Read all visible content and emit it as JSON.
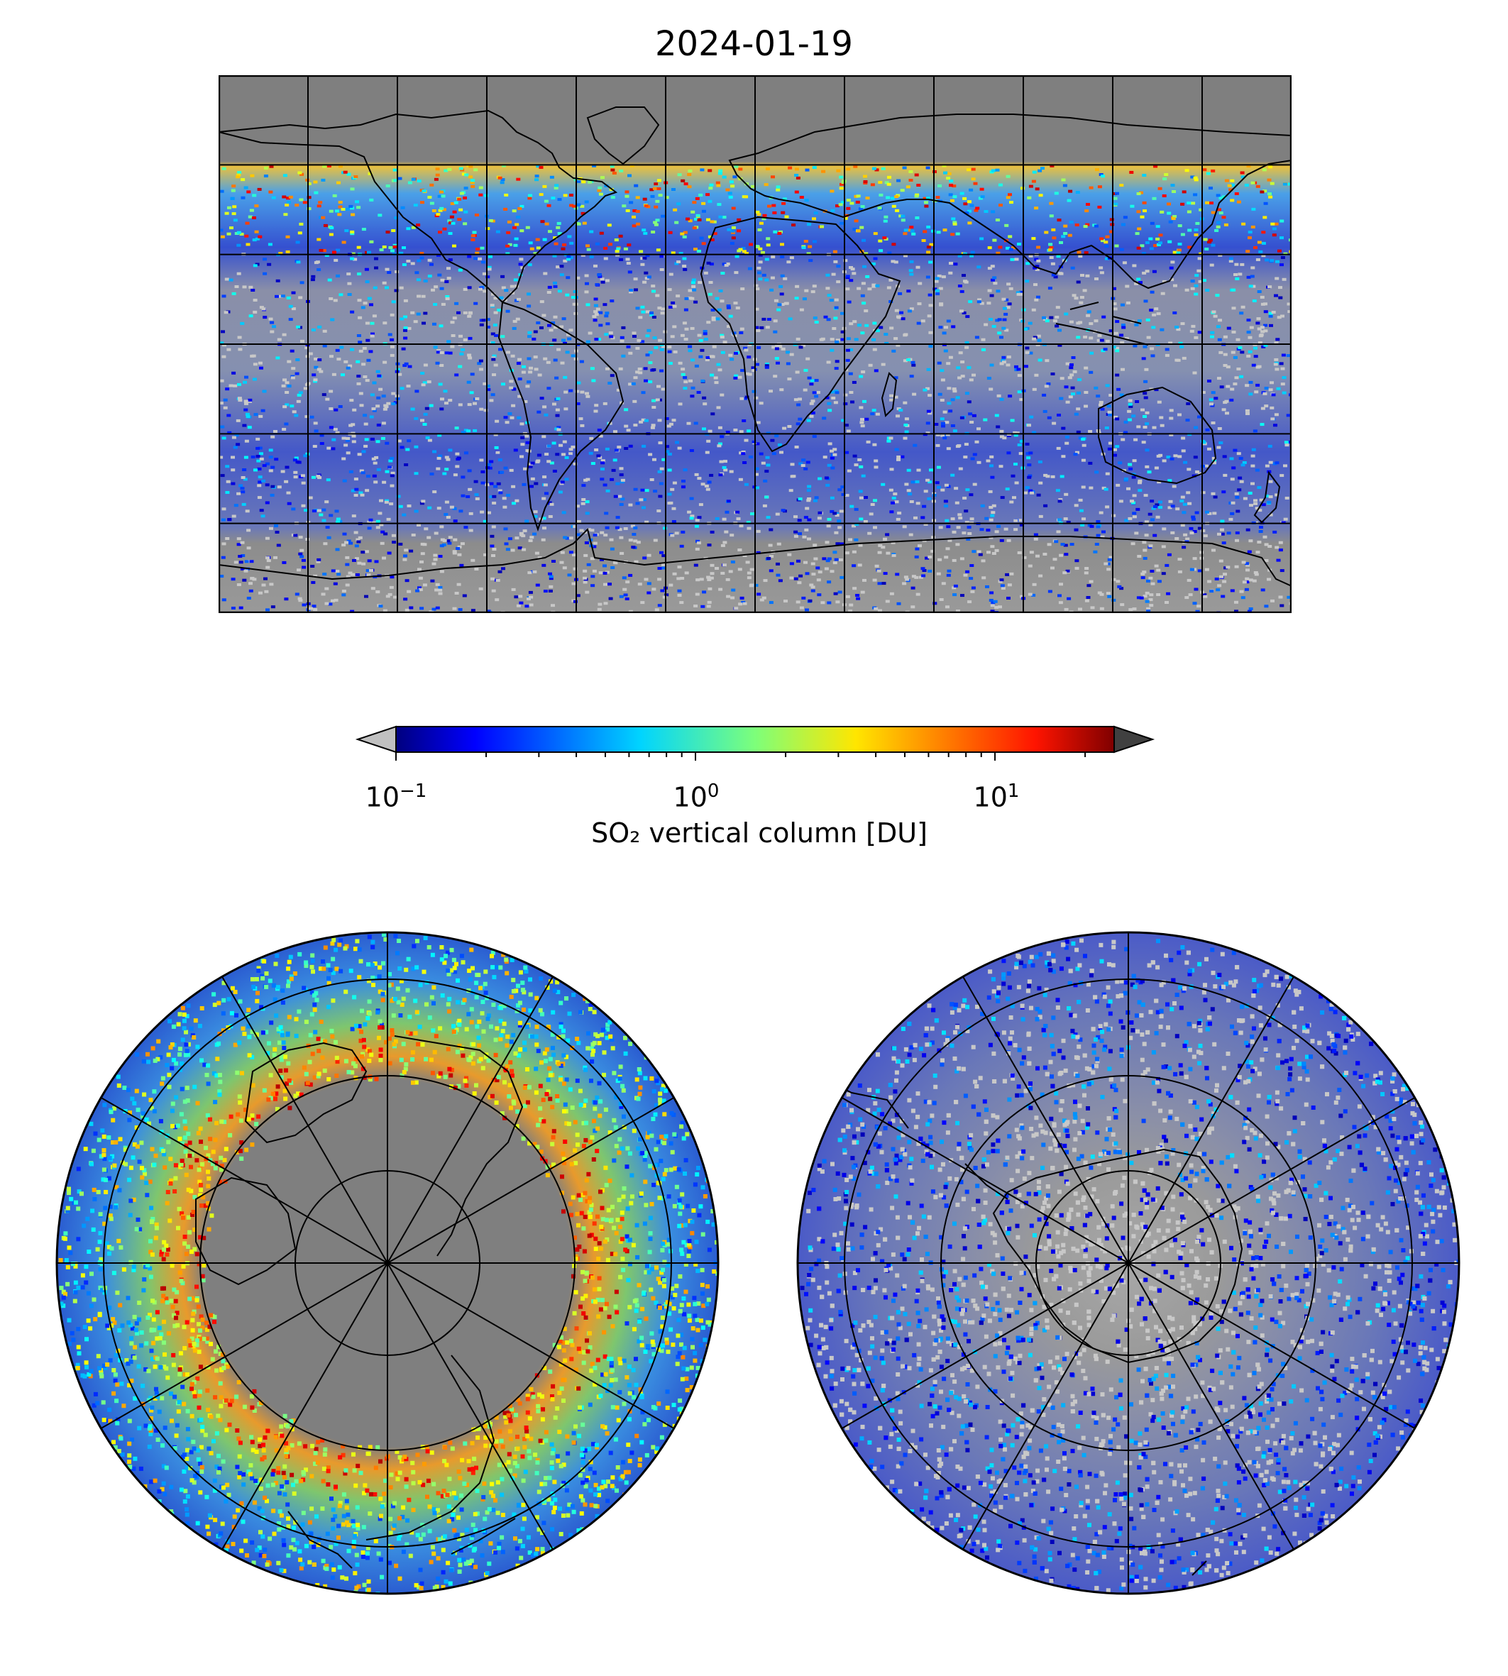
{
  "title": "2024-01-19",
  "colorbar": {
    "label": "SO₂ vertical column [DU]",
    "scale": "log",
    "range": [
      0.1,
      25
    ],
    "ticks": [
      {
        "base": "10",
        "exp": "−1",
        "value": 0.1
      },
      {
        "base": "10",
        "exp": "0",
        "value": 1
      },
      {
        "base": "10",
        "exp": "1",
        "value": 10
      }
    ],
    "colormap": "jet",
    "extend_under_color": "#c0c0c0",
    "extend_over_color": "#404040"
  },
  "map_colors": {
    "no_data": "#808080",
    "below_min": "#c8c8c8",
    "coastline": "#000000",
    "gridline": "#000000"
  },
  "panels": [
    {
      "id": "world",
      "projection": "equirectangular",
      "lon_gridlines_deg": 30,
      "lat_gridlines_deg": 30
    },
    {
      "id": "north-polar",
      "projection": "polar-stereographic",
      "hemisphere": "north"
    },
    {
      "id": "south-polar",
      "projection": "polar-stereographic",
      "hemisphere": "south"
    }
  ]
}
